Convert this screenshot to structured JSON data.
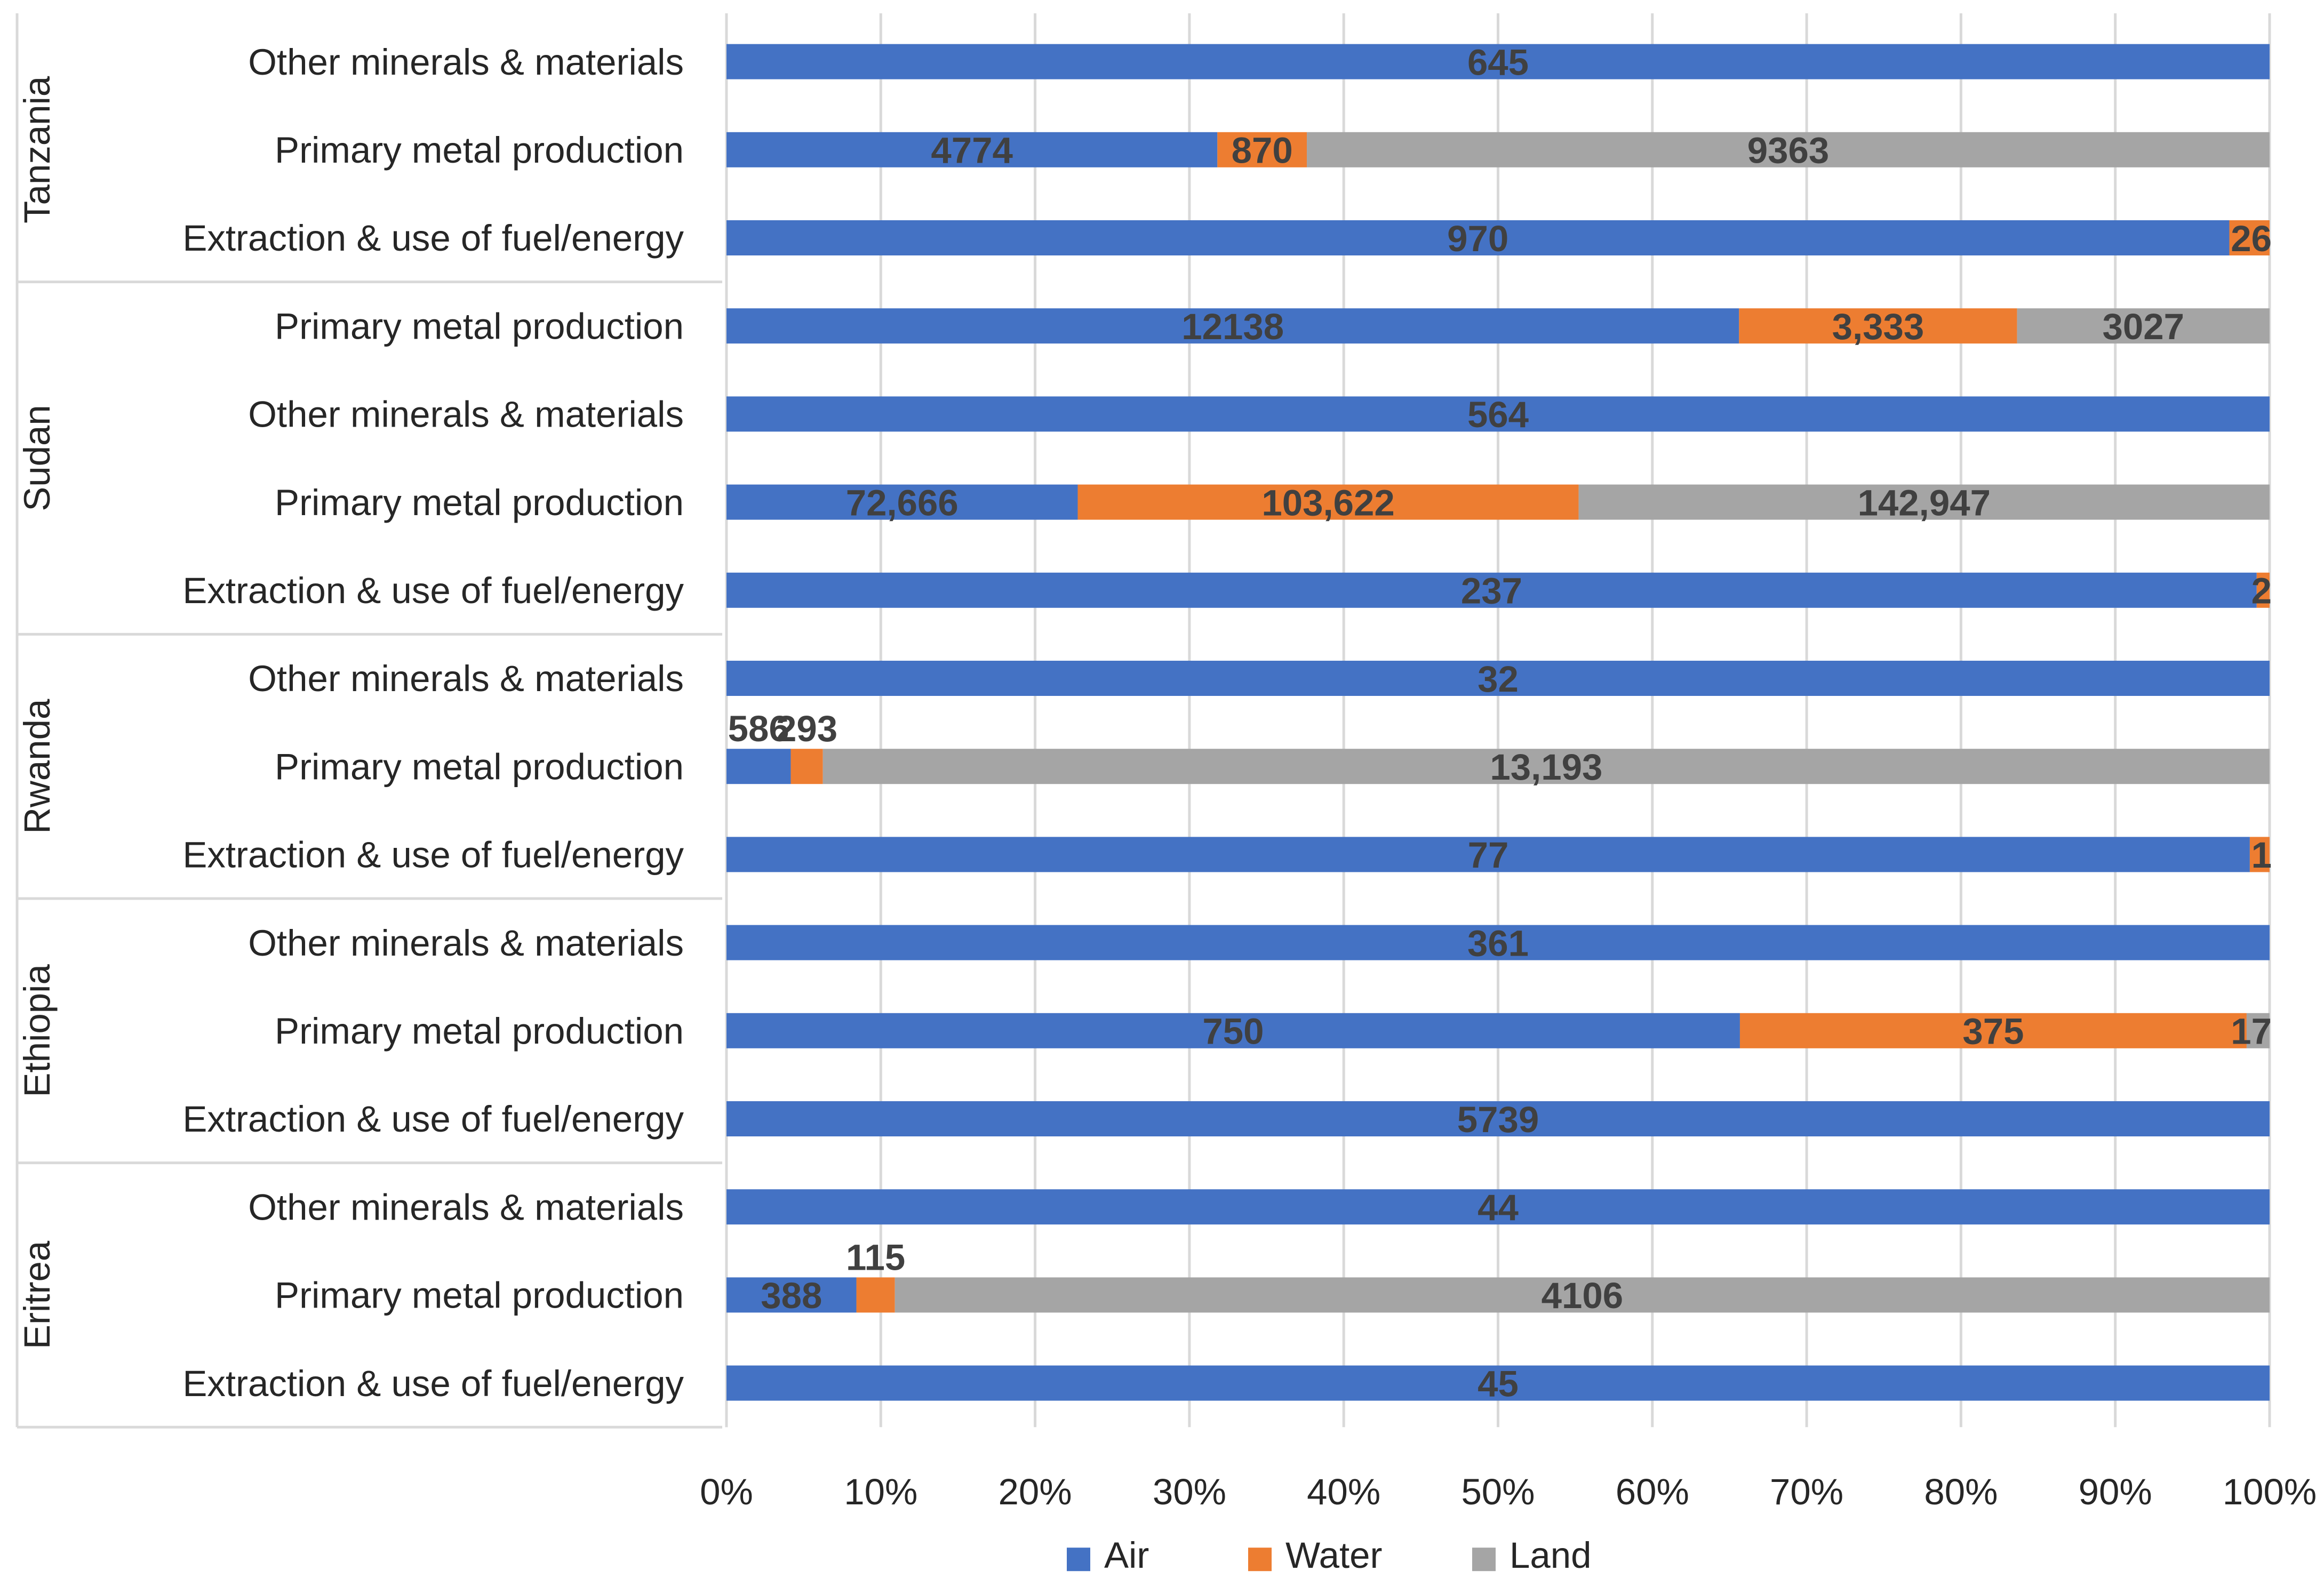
{
  "chart_data": {
    "type": "bar",
    "orientation": "horizontal",
    "stacking": "percent",
    "title": "",
    "xlabel": "",
    "ylabel": "",
    "xlim": [
      0,
      100
    ],
    "x_ticks": [
      "0%",
      "10%",
      "20%",
      "30%",
      "40%",
      "50%",
      "60%",
      "70%",
      "80%",
      "90%",
      "100%"
    ],
    "grid": "vertical",
    "legend_position": "bottom",
    "colors": {
      "Air": "#4472C4",
      "Water": "#ED7D31",
      "Land": "#A5A5A5",
      "label_text": "#404040",
      "axis_text": "#262626",
      "gridline": "#D9D9D9"
    },
    "series": [
      {
        "name": "Air"
      },
      {
        "name": "Water"
      },
      {
        "name": "Land"
      }
    ],
    "groups": [
      {
        "country": "Tanzania",
        "rows": [
          {
            "category": "Other minerals & materials",
            "values": [
              645,
              0,
              0
            ],
            "labels": [
              "645",
              "",
              ""
            ]
          },
          {
            "category": "Primary metal production",
            "values": [
              4774,
              870,
              9363
            ],
            "labels": [
              "4774",
              "870",
              "9363"
            ]
          },
          {
            "category": "Extraction & use of fuel/energy",
            "values": [
              970,
              26,
              0
            ],
            "labels": [
              "970",
              "26",
              ""
            ]
          }
        ]
      },
      {
        "country": "Sudan",
        "rows": [
          {
            "category": "Primary metal production",
            "values": [
              12138,
              3333,
              3027
            ],
            "labels": [
              "12138",
              "3,333",
              "3027"
            ]
          },
          {
            "category": "Other minerals & materials",
            "values": [
              564,
              0,
              0
            ],
            "labels": [
              "564",
              "",
              ""
            ]
          },
          {
            "category": "Primary metal production",
            "values": [
              72666,
              103622,
              142947
            ],
            "labels": [
              "72,666",
              "103,622",
              "142,947"
            ]
          },
          {
            "category": "Extraction & use of fuel/energy",
            "values": [
              237,
              2,
              0
            ],
            "labels": [
              "237",
              "2",
              ""
            ]
          }
        ]
      },
      {
        "country": "Rwanda",
        "rows": [
          {
            "category": "Other minerals & materials",
            "values": [
              32,
              0,
              0
            ],
            "labels": [
              "32",
              "",
              ""
            ]
          },
          {
            "category": "Primary metal production",
            "values": [
              586,
              293,
              13193
            ],
            "labels": [
              "586",
              "293",
              "13,193"
            ]
          },
          {
            "category": "Extraction & use of fuel/energy",
            "values": [
              77,
              1,
              0
            ],
            "labels": [
              "77",
              "1",
              ""
            ]
          }
        ]
      },
      {
        "country": "Ethiopia",
        "rows": [
          {
            "category": "Other minerals & materials",
            "values": [
              361,
              0,
              0
            ],
            "labels": [
              "361",
              "",
              ""
            ]
          },
          {
            "category": "Primary metal production",
            "values": [
              750,
              375,
              17
            ],
            "labels": [
              "750",
              "375",
              "17"
            ]
          },
          {
            "category": "Extraction & use of fuel/energy",
            "values": [
              5739,
              0,
              0
            ],
            "labels": [
              "5739",
              "",
              ""
            ]
          }
        ]
      },
      {
        "country": "Eritrea",
        "rows": [
          {
            "category": "Other minerals & materials",
            "values": [
              44,
              0,
              0
            ],
            "labels": [
              "44",
              "",
              ""
            ]
          },
          {
            "category": "Primary metal production",
            "values": [
              388,
              115,
              4106
            ],
            "labels": [
              "388",
              "115",
              "4106"
            ]
          },
          {
            "category": "Extraction & use of fuel/energy",
            "values": [
              45,
              0,
              0
            ],
            "labels": [
              "45",
              "",
              ""
            ]
          }
        ]
      }
    ]
  }
}
